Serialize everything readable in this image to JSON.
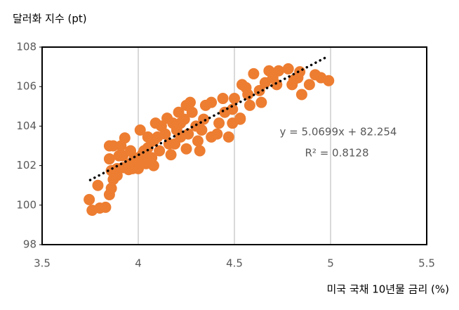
{
  "chart_data": {
    "type": "scatter",
    "y_label": "달러화 지수 (pt)",
    "x_label": "미국 국채 10년물 금리 (%)",
    "annotations": [
      "y = 5.0699x + 82.254",
      "R² = 0.8128"
    ],
    "xlim": [
      3.5,
      5.5
    ],
    "xticks": [
      3.5,
      4,
      4.5,
      5,
      5.5
    ],
    "ylim": [
      98,
      108
    ],
    "yticks": [
      98,
      100,
      102,
      104,
      106,
      108
    ],
    "grid": "x",
    "trendline": {
      "color": "#000000",
      "x": [
        3.75,
        4.97
      ],
      "y": [
        101.27,
        107.45
      ]
    },
    "series": [
      {
        "color": "#ed7d31",
        "x": [
          3.745,
          3.76,
          3.8,
          3.83,
          3.85,
          3.86,
          3.79,
          3.87,
          3.89,
          3.85,
          3.85,
          3.87,
          3.91,
          3.93,
          3.9,
          3.92,
          3.89,
          3.92,
          3.95,
          3.97,
          4.0,
          3.96,
          3.99,
          4.02,
          4.01,
          4.04,
          4.07,
          4.08,
          4.05,
          4.08,
          4.1,
          4.09,
          4.12,
          4.15,
          4.14,
          4.16,
          4.17,
          4.19,
          4.2,
          4.22,
          4.24,
          4.25,
          4.27,
          4.28,
          4.26,
          4.25,
          4.31,
          4.32,
          4.3,
          4.34,
          4.35,
          4.38,
          4.41,
          4.42,
          4.45,
          4.44,
          4.47,
          4.49,
          4.5,
          4.53,
          4.54,
          4.56,
          4.58,
          4.6,
          4.57,
          4.63,
          4.64,
          4.66,
          4.68,
          4.7,
          4.72,
          4.73,
          4.78,
          4.8,
          4.81,
          4.83,
          4.84,
          4.85,
          4.89,
          4.92,
          4.95,
          4.99,
          4.53,
          4.03,
          4.11,
          4.22,
          4.33,
          4.38,
          4.21,
          4.18,
          4.05,
          3.96,
          3.98,
          3.86,
          4.49
        ],
        "values": [
          100.28,
          99.74,
          99.85,
          99.89,
          100.53,
          100.85,
          101.0,
          101.3,
          101.5,
          102.34,
          103.0,
          103.0,
          103.0,
          103.4,
          102.5,
          102.5,
          101.85,
          101.9,
          101.8,
          101.85,
          101.85,
          102.1,
          102.3,
          102.55,
          103.8,
          102.1,
          102.4,
          102.0,
          102.9,
          103.25,
          103.45,
          104.15,
          104.0,
          104.4,
          103.6,
          103.1,
          102.55,
          103.1,
          103.8,
          104.15,
          104.35,
          105.05,
          105.2,
          104.7,
          103.6,
          102.85,
          103.25,
          102.75,
          104.0,
          104.35,
          105.05,
          103.45,
          103.6,
          104.15,
          104.7,
          105.4,
          103.45,
          104.85,
          105.4,
          104.35,
          106.1,
          105.95,
          105.05,
          106.65,
          105.6,
          105.8,
          105.2,
          106.2,
          106.8,
          106.45,
          106.1,
          106.8,
          106.9,
          106.1,
          106.35,
          106.45,
          106.75,
          105.6,
          106.1,
          106.6,
          106.45,
          106.3,
          104.4,
          102.75,
          102.75,
          103.45,
          103.8,
          105.2,
          104.7,
          104.15,
          103.45,
          102.75,
          102.4,
          101.75,
          104.15
        ]
      }
    ]
  }
}
